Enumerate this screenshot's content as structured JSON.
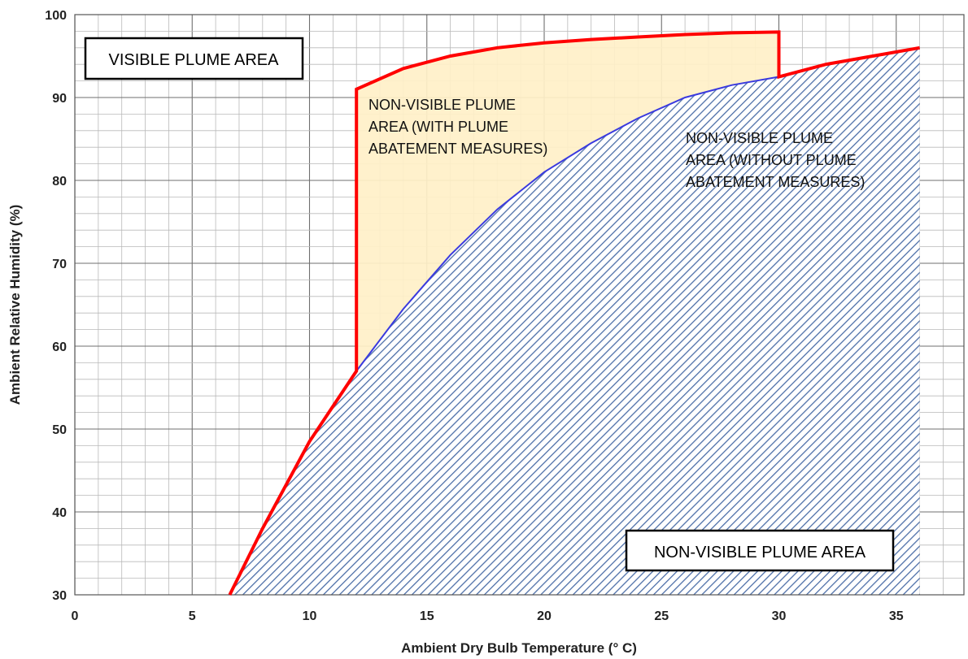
{
  "chart_data": {
    "type": "area",
    "xlabel": "Ambient Dry Bulb Temperature (° C)",
    "ylabel": "Ambient Relative Humidity (%)",
    "xlim": [
      0,
      37
    ],
    "ylim": [
      30,
      100
    ],
    "x_ticks": [
      0,
      5,
      10,
      15,
      20,
      25,
      30,
      35
    ],
    "y_ticks": [
      30,
      40,
      50,
      60,
      70,
      80,
      90,
      100
    ],
    "grid": true,
    "series": [
      {
        "name": "",
        "role": "without-abatement-boundary",
        "color": "#3a3adf",
        "x": [
          6.6,
          8,
          10,
          12,
          14,
          16,
          18,
          20,
          22,
          24,
          26,
          28,
          30,
          32,
          34,
          36
        ],
        "y": [
          30,
          38,
          48.5,
          57,
          64.5,
          71,
          76.5,
          81,
          84.5,
          87.5,
          90,
          91.5,
          92.5,
          94,
          95,
          96
        ]
      },
      {
        "name": "",
        "role": "with-abatement-boundary",
        "color": "#ff0000",
        "x": [
          6.6,
          8,
          10,
          12,
          12,
          14,
          16,
          18,
          20,
          22,
          24,
          26,
          28,
          30,
          30,
          32,
          34,
          36
        ],
        "y": [
          30,
          38,
          48.5,
          57,
          91,
          93.5,
          95,
          96,
          96.6,
          97,
          97.3,
          97.6,
          97.8,
          97.9,
          92.5,
          94,
          95,
          96
        ]
      }
    ],
    "colors": {
      "hatch": "#4d6fa8",
      "hatch_bg": "#ffffff",
      "abatement_fill": "#fff0c8",
      "boundary_red": "#ff0000",
      "boundary_blue": "#3a3adf"
    },
    "annotations": [
      {
        "id": "visible",
        "lines": [
          "VISIBLE PLUME AREA"
        ],
        "boxed": true,
        "position": "top-left"
      },
      {
        "id": "with",
        "lines": [
          "NON-VISIBLE PLUME",
          "AREA (WITH PLUME",
          "ABATEMENT MEASURES)"
        ],
        "boxed": false,
        "position": "upper-middle"
      },
      {
        "id": "without",
        "lines": [
          "NON-VISIBLE PLUME",
          "AREA (WITHOUT PLUME",
          "ABATEMENT MEASURES)"
        ],
        "boxed": false,
        "position": "upper-right"
      },
      {
        "id": "nonvisible",
        "lines": [
          "NON-VISIBLE PLUME AREA"
        ],
        "boxed": true,
        "position": "bottom-right"
      }
    ]
  }
}
